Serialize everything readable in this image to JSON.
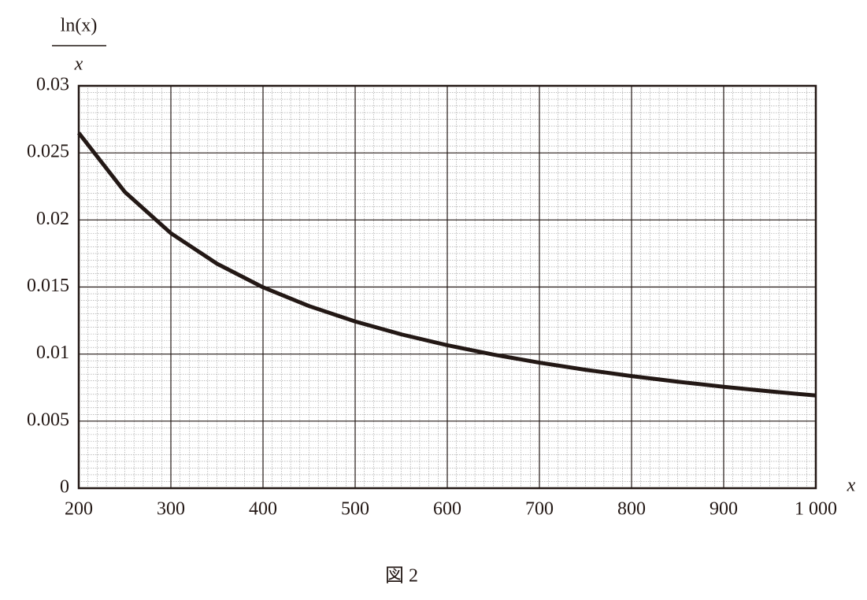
{
  "chart_data": {
    "type": "line",
    "ylabel_numerator": "ln(x)",
    "ylabel_denominator": "x",
    "xlabel": "x",
    "caption": "図 2",
    "x": [
      200,
      250,
      300,
      350,
      400,
      450,
      500,
      550,
      600,
      650,
      700,
      750,
      800,
      850,
      900,
      950,
      1000
    ],
    "values": [
      0.02649,
      0.02209,
      0.01901,
      0.01674,
      0.01498,
      0.01358,
      0.01243,
      0.01147,
      0.01066,
      0.00996,
      0.00936,
      0.00883,
      0.00836,
      0.00794,
      0.00756,
      0.00722,
      0.00691
    ],
    "color": "#231815",
    "xlim": [
      200,
      1000
    ],
    "xticks": [
      200,
      300,
      400,
      500,
      600,
      700,
      800,
      900,
      {
        "value": 1000,
        "label": "1 000"
      }
    ],
    "ylim": [
      0,
      0.03
    ],
    "yticks": [
      0,
      0.005,
      0.01,
      0.015,
      0.02,
      0.025,
      0.03
    ],
    "grid": true,
    "minor_grid": 10
  }
}
